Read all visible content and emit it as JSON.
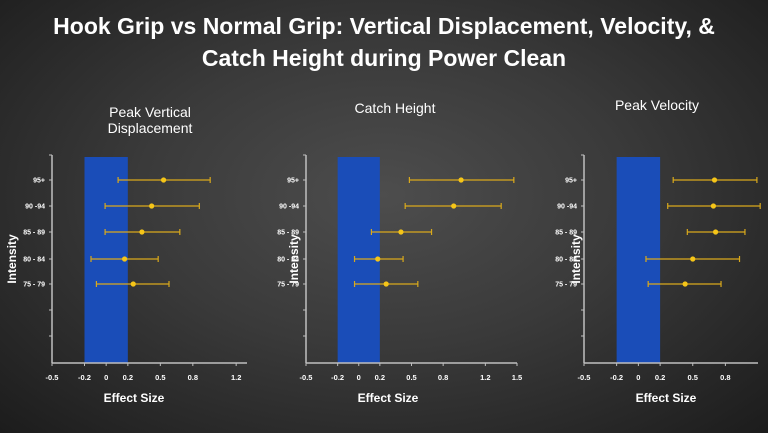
{
  "title_line1": "Hook Grip vs Normal Grip: Vertical Displacement, Velocity, &",
  "title_line2": "Catch Height during Power Clean",
  "colors": {
    "band": "#1a4db8",
    "errorbar": "#d9a91c",
    "point": "#f5c518",
    "axis": "#bfbfbf"
  },
  "chart_data": [
    {
      "type": "scatter",
      "title_lines": [
        "Peak Vertical",
        "Displacement"
      ],
      "xlabel": "Effect Size",
      "ylabel": "Intensity",
      "xticks": [
        -0.5,
        -0.2,
        0,
        0.2,
        0.5,
        0.8,
        1.2
      ],
      "xtick_labels": [
        "-0.5",
        "-0.2",
        "0",
        "0.2",
        "0.5",
        "0.8",
        "1.2"
      ],
      "xlim": [
        -0.5,
        1.3
      ],
      "band": [
        -0.2,
        0.2
      ],
      "categories": [
        "95+",
        "90 -94",
        "85 - 89",
        "80 - 84",
        "75 - 79"
      ],
      "values": [
        0.53,
        0.42,
        0.33,
        0.17,
        0.25
      ],
      "lower": [
        0.11,
        -0.01,
        -0.01,
        -0.14,
        -0.09
      ],
      "upper": [
        0.96,
        0.86,
        0.68,
        0.48,
        0.58
      ]
    },
    {
      "type": "scatter",
      "title_lines": [
        "Catch Height"
      ],
      "xlabel": "Effect Size",
      "ylabel": "Intensity",
      "xticks": [
        -0.5,
        -0.2,
        0,
        0.2,
        0.5,
        0.8,
        1.2,
        1.5
      ],
      "xtick_labels": [
        "-0.5",
        "-0.2",
        "0",
        "0.2",
        "0.5",
        "0.8",
        "1.2",
        "1.5"
      ],
      "xlim": [
        -0.5,
        1.5
      ],
      "band": [
        -0.2,
        0.2
      ],
      "categories": [
        "95+",
        "90 -94",
        "85 - 89",
        "80 - 84",
        "75 - 79"
      ],
      "values": [
        0.97,
        0.9,
        0.4,
        0.18,
        0.26
      ],
      "lower": [
        0.48,
        0.44,
        0.12,
        -0.04,
        -0.04
      ],
      "upper": [
        1.47,
        1.35,
        0.69,
        0.42,
        0.56
      ]
    },
    {
      "type": "scatter",
      "title_lines": [
        "Peak Velocity"
      ],
      "xlabel": "Effect Size",
      "ylabel": "Intensity",
      "xticks": [
        -0.5,
        -0.2,
        0,
        0.2,
        0.5,
        0.8
      ],
      "xtick_labels": [
        "-0.5",
        "-0.2",
        "0",
        "0.2",
        "0.5",
        "0.8"
      ],
      "xlim": [
        -0.5,
        1.1
      ],
      "band": [
        -0.2,
        0.2
      ],
      "categories": [
        "95+",
        "90 -94",
        "85 - 89",
        "80 - 84",
        "75 - 79"
      ],
      "values": [
        0.7,
        0.69,
        0.71,
        0.5,
        0.43
      ],
      "lower": [
        0.32,
        0.27,
        0.45,
        0.07,
        0.09
      ],
      "upper": [
        1.09,
        1.12,
        0.98,
        0.93,
        0.76
      ]
    }
  ]
}
